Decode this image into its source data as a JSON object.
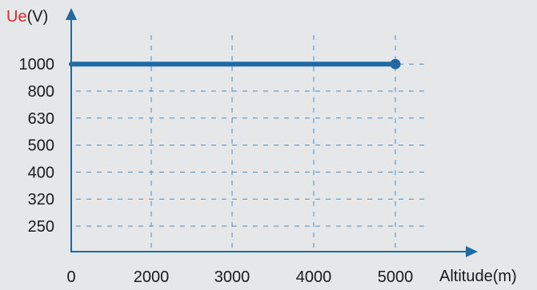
{
  "chart_data": {
    "type": "line",
    "ylabel_part1": "Ue",
    "ylabel_part2": "(V)",
    "xlabel": "Altitude(m)",
    "x_ticks": [
      0,
      2000,
      3000,
      4000,
      5000
    ],
    "y_ticks": [
      "250",
      "320",
      "400",
      "500",
      "630",
      "800",
      "1000"
    ],
    "series": [
      {
        "x": [
          0,
          5000
        ],
        "y": [
          "1000",
          "1000"
        ]
      }
    ],
    "grid": true,
    "colors": {
      "line": "#1f6aa5",
      "axis": "#1f6aa5",
      "grid": "#4a8ec2",
      "ylabel_accent": "#e0262e",
      "background": "#e6e7e8"
    }
  }
}
